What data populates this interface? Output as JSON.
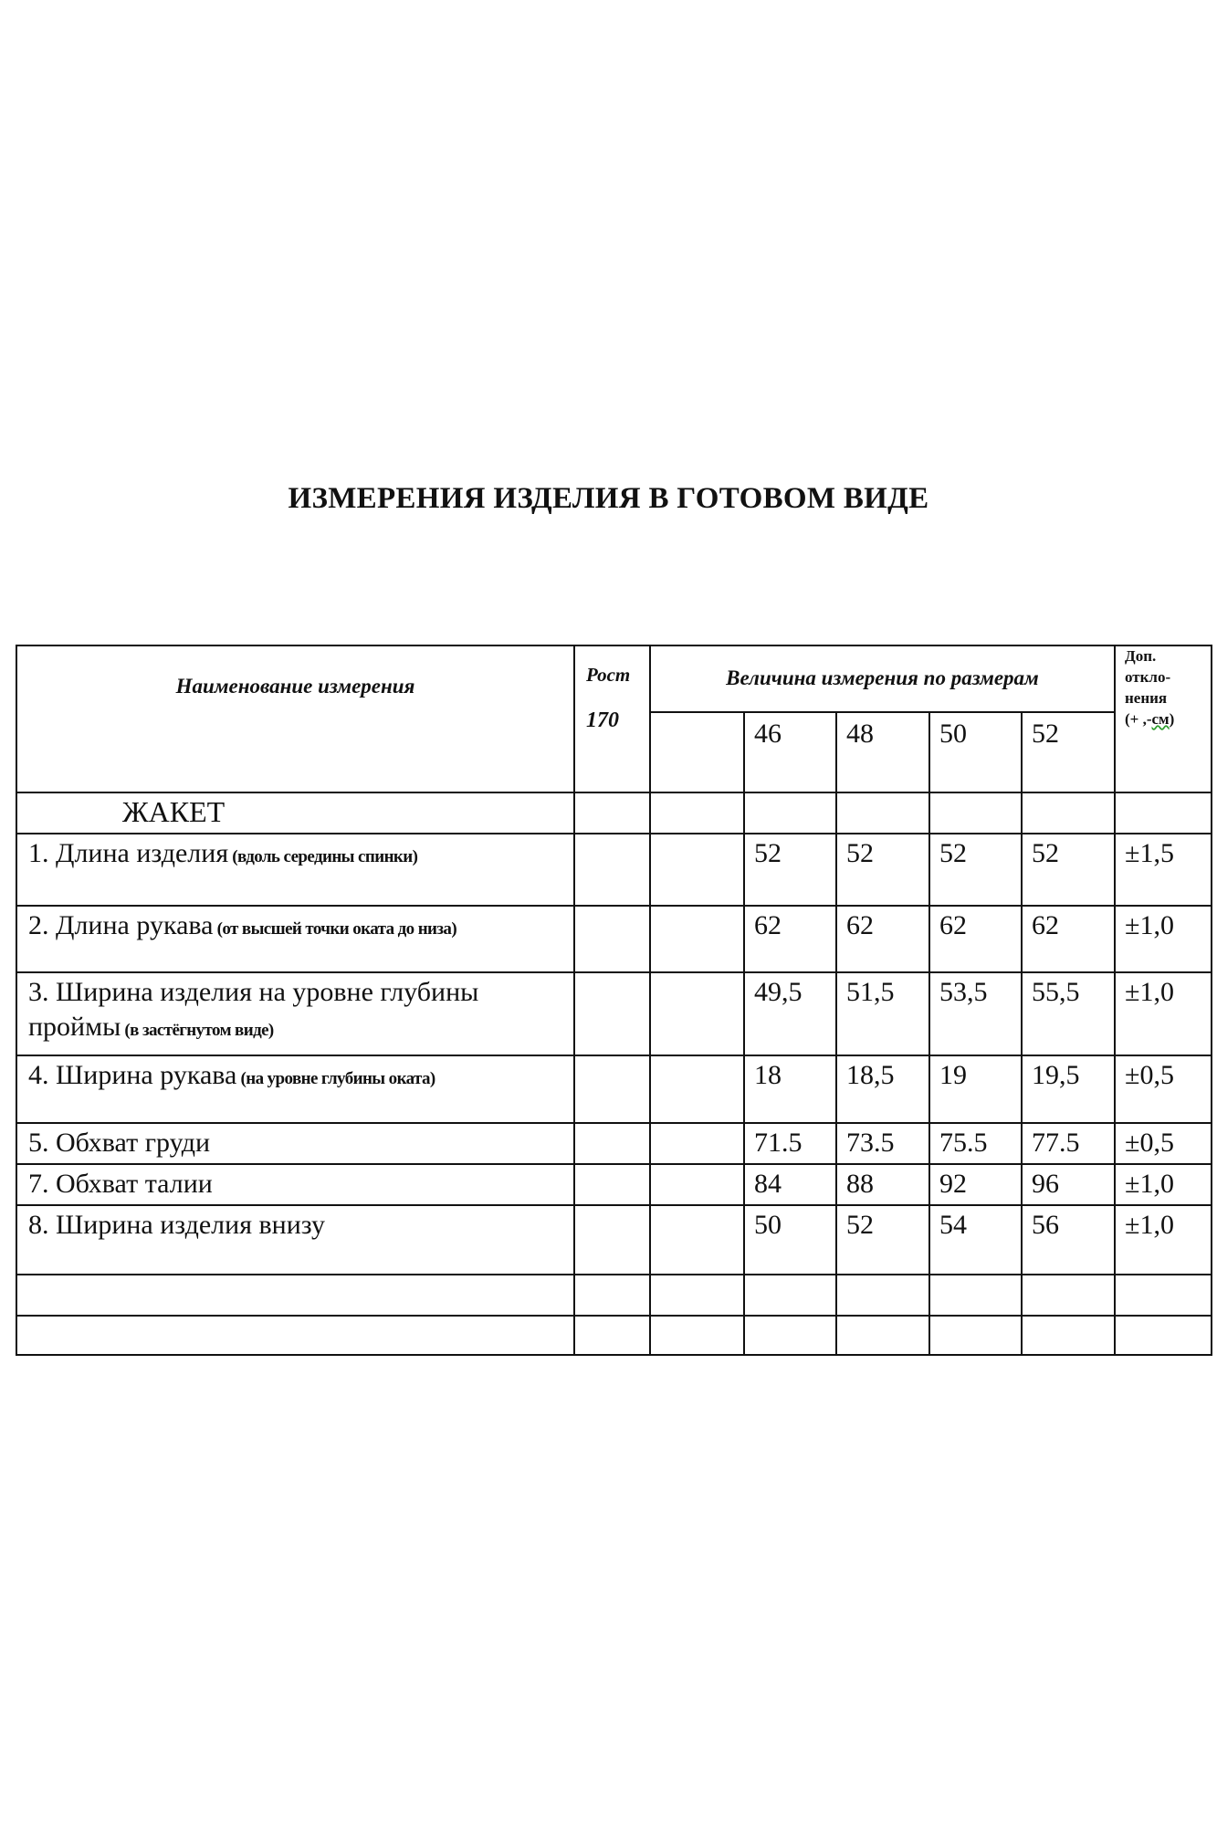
{
  "title": "ИЗМЕРЕНИЯ ИЗДЕЛИЯ В ГОТОВОМ ВИДЕ",
  "header": {
    "name_col": "Наименование измерения",
    "height_label": "Рост",
    "height_value": "170",
    "sizes_label": "Величина измерения по размерам",
    "tolerance_lines": [
      "Доп.",
      "откло-",
      "нения",
      "(+ ,-",
      "см",
      ")"
    ],
    "sizes": [
      "46",
      "48",
      "50",
      "52"
    ]
  },
  "section": "ЖАКЕТ",
  "rows": [
    {
      "name": "1. Длина изделия",
      "note": " (вдоль середины спинки)",
      "values": [
        "52",
        "52",
        "52",
        "52"
      ],
      "tol": "±1,5"
    },
    {
      "name": "2. Длина рукава",
      "note": " (от высшей точки оката до низа)",
      "values": [
        "62",
        "62",
        "62",
        "62"
      ],
      "tol": "±1,0"
    },
    {
      "name": "3. Ширина изделия на уровне глубины проймы",
      "note": " (в застёгнутом виде)",
      "values": [
        "49,5",
        "51,5",
        "53,5",
        "55,5"
      ],
      "tol": "±1,0"
    },
    {
      "name": "4. Ширина рукава",
      "note": " (на уровне глубины оката)",
      "values": [
        "18",
        "18,5",
        "19",
        "19,5"
      ],
      "tol": "±0,5"
    },
    {
      "name": "5. Обхват груди",
      "note": "",
      "values": [
        "71.5",
        "73.5",
        "75.5",
        "77.5"
      ],
      "tol": "±0,5"
    },
    {
      "name": "7. Обхват талии",
      "note": "",
      "values": [
        "84",
        "88",
        "92",
        "96"
      ],
      "tol": "±1,0"
    },
    {
      "name": "8. Ширина изделия внизу",
      "note": "",
      "values": [
        "50",
        "52",
        "54",
        "56"
      ],
      "tol": "±1,0"
    }
  ]
}
